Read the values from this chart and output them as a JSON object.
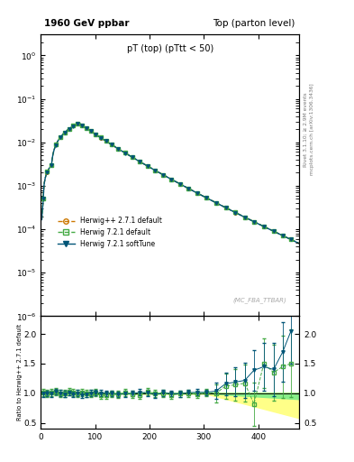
{
  "title_left": "1960 GeV ppbar",
  "title_right": "Top (parton level)",
  "main_title": "pT (top) (pTtt < 50)",
  "watermark": "(MC_FBA_TTBAR)",
  "right_label_top": "Rivet 3.1.10; ≥ 2.9M events",
  "right_label_bottom": "mcplots.cern.ch [arXiv:1306.3436]",
  "ylabel_ratio": "Ratio to Herwig++ 2.7.1 default",
  "xlim": [
    0,
    475
  ],
  "ylim_main": [
    1e-06,
    3
  ],
  "ylim_ratio": [
    0.4,
    2.3
  ],
  "yticks_ratio": [
    0.5,
    1.0,
    1.5,
    2.0
  ],
  "xticks": [
    0,
    100,
    200,
    300,
    400
  ],
  "legend_entries": [
    {
      "label": "Herwig++ 2.7.1 default",
      "color": "#cc7700",
      "linestyle": "--",
      "marker": "o",
      "markersize": 3
    },
    {
      "label": "Herwig 7.2.1 default",
      "color": "#44aa44",
      "linestyle": "--",
      "marker": "s",
      "markersize": 3
    },
    {
      "label": "Herwig 7.2.1 softTune",
      "color": "#005577",
      "linestyle": "-",
      "marker": "v",
      "markersize": 3
    }
  ],
  "herwig_pp_color": "#cc7700",
  "herwig721_color": "#44aa44",
  "herwig721_soft_color": "#005577",
  "ratio_band_yellow": "#ffff88",
  "ratio_band_green": "#88ee88",
  "background_color": "#ffffff"
}
